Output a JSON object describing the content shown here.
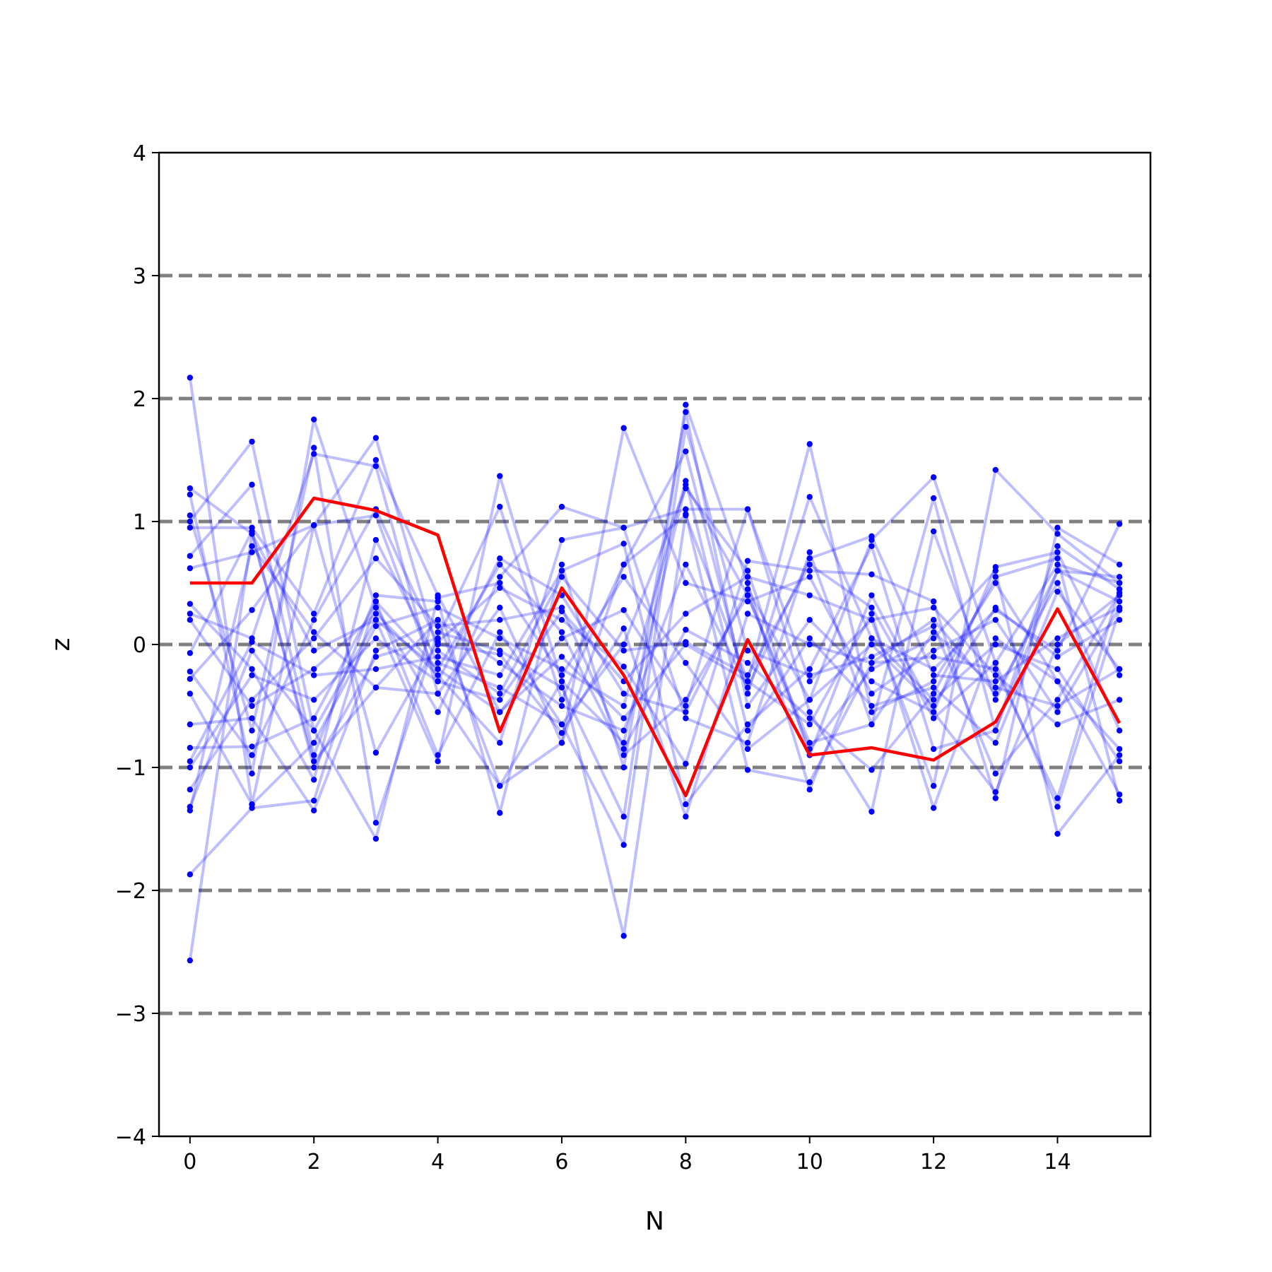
{
  "chart_data": {
    "type": "line",
    "title": "",
    "xlabel": "N",
    "ylabel": "z",
    "xlim": [
      -0.5,
      15.5
    ],
    "ylim": [
      -4,
      4
    ],
    "xticks": [
      0,
      2,
      4,
      6,
      8,
      10,
      12,
      14
    ],
    "yticks": [
      -4,
      -3,
      -2,
      -1,
      0,
      1,
      2,
      3,
      4
    ],
    "ytick_labels": [
      "−4",
      "−3",
      "−2",
      "−1",
      "0",
      "1",
      "2",
      "3",
      "4"
    ],
    "reference_lines": [
      -3,
      -2,
      -1,
      0,
      1,
      2,
      3
    ],
    "grid": false,
    "colors": {
      "highlight": "#ff0000",
      "trajectories": "#0000ff",
      "reference": "#808080"
    },
    "highlight": {
      "x": [
        0,
        1,
        2,
        3,
        4,
        5,
        6,
        7,
        8,
        9,
        10,
        11,
        12,
        13,
        14,
        15
      ],
      "y": [
        0.5,
        0.5,
        1.19,
        1.09,
        0.89,
        -0.71,
        0.46,
        -0.25,
        -1.23,
        0.04,
        -0.9,
        -0.84,
        -0.94,
        -0.63,
        0.29,
        -0.64
      ]
    },
    "series": [
      {
        "values": [
          2.17,
          -1.3,
          0.97,
          1.05,
          -0.3,
          0.7,
          0.4,
          -0.4,
          -0.55,
          0.45,
          -0.45,
          0.85,
          1.36,
          -0.15,
          0.65,
          0.5
        ]
      },
      {
        "values": [
          1.27,
          0.9,
          -0.95,
          -0.35,
          0.2,
          -1.15,
          -0.8,
          0.65,
          1.05,
          -0.3,
          1.63,
          -0.55,
          -0.3,
          0.5,
          -0.3,
          -1.22
        ]
      },
      {
        "values": [
          1.22,
          -1.05,
          1.83,
          0.3,
          -0.55,
          0.55,
          1.12,
          0.95,
          -0.6,
          -0.8,
          0.75,
          -0.65,
          1.19,
          -0.7,
          0.8,
          0.45
        ]
      },
      {
        "values": [
          1.05,
          -0.7,
          1.6,
          -1.45,
          0.1,
          -0.05,
          -0.35,
          -1.4,
          1.95,
          0.5,
          -1.18,
          0.05,
          -0.2,
          0.28,
          -0.05,
          0.98
        ]
      },
      {
        "values": [
          1.0,
          1.65,
          -0.7,
          0.2,
          -0.95,
          1.37,
          -0.3,
          -0.8,
          1.3,
          0.4,
          -0.85,
          -0.2,
          0.05,
          0.6,
          -1.54,
          -0.9
        ]
      },
      {
        "values": [
          0.95,
          0.95,
          0.25,
          1.5,
          0.4,
          -0.55,
          0.05,
          0.28,
          -0.5,
          1.1,
          -0.55,
          -1.36,
          0.92,
          -0.45,
          0.6,
          0.35
        ]
      },
      {
        "values": [
          0.72,
          1.3,
          -0.9,
          0.4,
          0.35,
          -1.37,
          0.65,
          -1.0,
          1.89,
          -0.5,
          0.2,
          -0.3,
          -0.55,
          0.63,
          0.75,
          -0.25
        ]
      },
      {
        "values": [
          0.62,
          0.75,
          0.97,
          -0.88,
          0.02,
          0.46,
          0.2,
          -0.18,
          -0.97,
          0.68,
          0.6,
          0.57,
          0.35,
          -1.25,
          0.95,
          0.65
        ]
      },
      {
        "values": [
          0.33,
          -0.2,
          -1.1,
          0.85,
          -0.15,
          -0.35,
          -0.65,
          -1.63,
          1.77,
          -0.05,
          -0.25,
          -0.1,
          0.15,
          -1.05,
          -0.45,
          0.42
        ]
      },
      {
        "values": [
          0.25,
          0.05,
          1.55,
          1.45,
          -0.4,
          0.3,
          -0.8,
          1.76,
          0.5,
          0.35,
          0.55,
          -0.4,
          -0.05,
          0.2,
          -0.55,
          0.3
        ]
      },
      {
        "values": [
          0.2,
          -0.5,
          -0.2,
          0.25,
          -0.25,
          -0.8,
          0.85,
          0.95,
          1.1,
          1.1,
          -0.3,
          0.2,
          -1.15,
          1.42,
          0.9,
          0.5
        ]
      },
      {
        "values": [
          -0.07,
          0.92,
          -1.0,
          -0.1,
          0.05,
          1.12,
          -0.45,
          0.65,
          1.57,
          -0.4,
          1.2,
          0.05,
          -0.45,
          0.0,
          -0.2,
          -0.95
        ]
      },
      {
        "values": [
          -0.22,
          -0.9,
          0.2,
          1.1,
          0.0,
          -0.08,
          -0.72,
          0.13,
          -1.4,
          0.25,
          0.0,
          -0.15,
          -0.1,
          -0.2,
          -1.25,
          0.45
        ]
      },
      {
        "values": [
          -0.28,
          0.28,
          0.97,
          1.68,
          -0.05,
          -0.4,
          0.55,
          -0.05,
          0.02,
          -0.25,
          0.65,
          0.3,
          -0.6,
          -0.15,
          -1.32,
          0.28
        ]
      },
      {
        "values": [
          -0.4,
          -1.3,
          -0.8,
          0.15,
          0.3,
          0.05,
          -0.2,
          -0.5,
          1.33,
          -0.7,
          0.05,
          -0.5,
          -0.35,
          -0.8,
          0.43,
          -0.2
        ]
      },
      {
        "values": [
          -0.65,
          -0.6,
          -1.35,
          -0.05,
          0.2,
          -0.15,
          -0.5,
          -0.7,
          0.65,
          -0.35,
          0.7,
          0.88,
          -0.25,
          -0.3,
          0.05,
          0.3
        ]
      },
      {
        "values": [
          -0.84,
          -0.83,
          -0.6,
          0.35,
          -0.2,
          0.65,
          0.1,
          -0.9,
          -0.45,
          0.4,
          -0.8,
          -0.65,
          0.1,
          -0.35,
          -0.5,
          -0.2
        ]
      },
      {
        "values": [
          -0.95,
          0.02,
          -0.25,
          -0.2,
          -0.1,
          -0.25,
          0.6,
          0.82,
          -1.3,
          -0.65,
          -0.2,
          0.8,
          -0.85,
          -0.7,
          0.6,
          0.55
        ]
      },
      {
        "values": [
          -1.0,
          -0.25,
          -0.45,
          0.05,
          -0.3,
          -0.45,
          0.27,
          -0.3,
          0.25,
          0.55,
          0.4,
          0.2,
          0.3,
          -0.25,
          -0.65,
          -0.45
        ]
      },
      {
        "values": [
          -1.18,
          -0.45,
          0.05,
          0.7,
          0.15,
          0.2,
          0.3,
          -0.85,
          0.12,
          -0.15,
          -0.6,
          -1.02,
          -0.4,
          0.55,
          0.7,
          -1.27
        ]
      },
      {
        "values": [
          -1.32,
          -0.05,
          -0.7,
          -1.58,
          0.38,
          0.5,
          -0.25,
          0.55,
          -0.15,
          -0.85,
          -0.45,
          0.0,
          -0.5,
          0.3,
          -0.1,
          0.2
        ]
      },
      {
        "values": [
          -1.35,
          0.8,
          0.1,
          -0.35,
          -0.4,
          -1.15,
          -0.3,
          -2.37,
          1.06,
          -1.02,
          -1.12,
          -0.15,
          0.2,
          -0.4,
          0.5,
          -0.7
        ]
      },
      {
        "values": [
          -1.87,
          -1.33,
          -1.27,
          0.35,
          -0.9,
          0.1,
          -0.65,
          0.0,
          1.27,
          0.6,
          -0.9,
          0.4,
          -0.55,
          -1.2,
          0.0,
          0.4
        ]
      },
      {
        "values": [
          -2.57,
          0.9,
          -0.05,
          0.2,
          -0.2,
          -0.55,
          -0.1,
          -0.6,
          0.0,
          -0.3,
          -0.65,
          0.25,
          -1.33,
          0.05,
          -0.3,
          -0.85
        ]
      }
    ]
  }
}
